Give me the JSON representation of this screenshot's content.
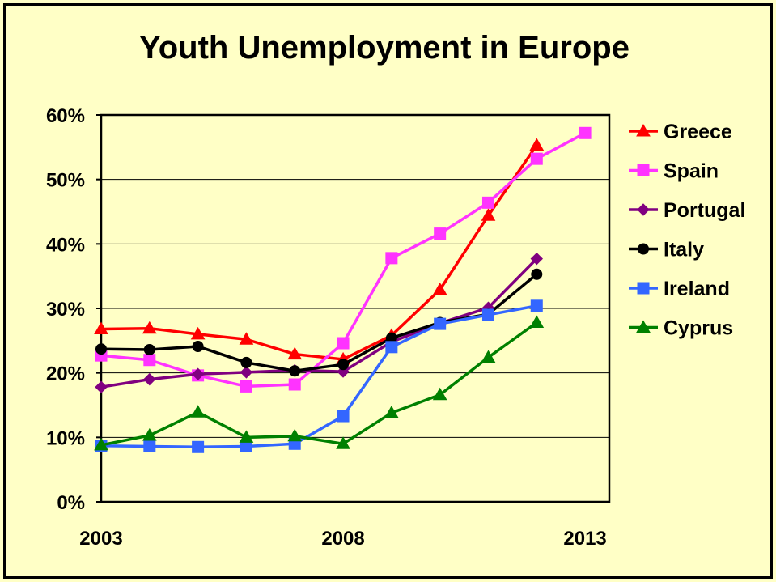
{
  "chart_data": {
    "type": "line",
    "title": "Youth Unemployment in Europe",
    "xlabel": "",
    "ylabel": "",
    "x": [
      2003,
      2004,
      2005,
      2006,
      2007,
      2008,
      2009,
      2010,
      2011,
      2012,
      2013
    ],
    "x_tick_labels": [
      "2003",
      "2008",
      "2013"
    ],
    "x_ticks": [
      2003,
      2008,
      2013
    ],
    "xlim": [
      2003,
      2013.5
    ],
    "ylim": [
      0,
      60
    ],
    "y_ticks": [
      0,
      10,
      20,
      30,
      40,
      50,
      60
    ],
    "y_tick_labels": [
      "0%",
      "10%",
      "20%",
      "30%",
      "40%",
      "50%",
      "60%"
    ],
    "grid": "horizontal",
    "legend_position": "right",
    "series": [
      {
        "name": "Greece",
        "color": "#ff0000",
        "marker": "triangle",
        "values": [
          26.8,
          26.9,
          26.0,
          25.2,
          22.9,
          22.1,
          25.8,
          32.9,
          44.4,
          55.3,
          null
        ]
      },
      {
        "name": "Spain",
        "color": "#ff33ff",
        "marker": "square",
        "values": [
          22.7,
          22.0,
          19.6,
          17.9,
          18.2,
          24.6,
          37.8,
          41.6,
          46.4,
          53.2,
          57.2
        ]
      },
      {
        "name": "Portugal",
        "color": "#800080",
        "marker": "diamond",
        "values": [
          17.8,
          19.0,
          19.8,
          20.1,
          20.4,
          20.2,
          24.8,
          27.7,
          30.1,
          37.7,
          null
        ]
      },
      {
        "name": "Italy",
        "color": "#000000",
        "marker": "circle",
        "values": [
          23.7,
          23.6,
          24.1,
          21.6,
          20.3,
          21.3,
          25.4,
          27.8,
          29.1,
          35.3,
          null
        ]
      },
      {
        "name": "Ireland",
        "color": "#3366ff",
        "marker": "square",
        "values": [
          8.7,
          8.6,
          8.5,
          8.6,
          9.0,
          13.3,
          24.0,
          27.6,
          29.0,
          30.4,
          null
        ]
      },
      {
        "name": "Cyprus",
        "color": "#008000",
        "marker": "triangle",
        "values": [
          8.8,
          10.3,
          13.9,
          10.0,
          10.2,
          9.0,
          13.8,
          16.6,
          22.4,
          27.8,
          null
        ]
      }
    ]
  }
}
